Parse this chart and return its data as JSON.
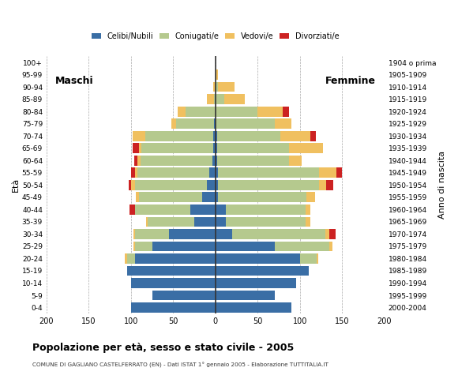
{
  "age_groups": [
    "0-4",
    "5-9",
    "10-14",
    "15-19",
    "20-24",
    "25-29",
    "30-34",
    "35-39",
    "40-44",
    "45-49",
    "50-54",
    "55-59",
    "60-64",
    "65-69",
    "70-74",
    "75-79",
    "80-84",
    "85-89",
    "90-94",
    "95-99",
    "100+"
  ],
  "birth_years": [
    "2000-2004",
    "1995-1999",
    "1990-1994",
    "1985-1989",
    "1980-1984",
    "1975-1979",
    "1970-1974",
    "1965-1969",
    "1960-1964",
    "1955-1959",
    "1950-1954",
    "1945-1949",
    "1940-1944",
    "1935-1939",
    "1930-1934",
    "1925-1929",
    "1920-1924",
    "1915-1919",
    "1910-1914",
    "1905-1909",
    "1904 o prima"
  ],
  "colors": {
    "celibi": "#3a6ea5",
    "coniugati": "#b5c98e",
    "vedovi": "#f0c060",
    "divorziati": "#cc2222"
  },
  "males": {
    "celibi": [
      100,
      75,
      100,
      105,
      95,
      75,
      55,
      25,
      30,
      16,
      10,
      7,
      4,
      3,
      3,
      2,
      0,
      0,
      0,
      0,
      0
    ],
    "coniugati": [
      0,
      0,
      0,
      0,
      10,
      20,
      40,
      55,
      65,
      75,
      85,
      85,
      85,
      85,
      80,
      45,
      35,
      2,
      0,
      0,
      0
    ],
    "vedovi": [
      0,
      0,
      0,
      0,
      2,
      2,
      2,
      2,
      0,
      3,
      5,
      3,
      3,
      3,
      15,
      5,
      10,
      8,
      3,
      0,
      0
    ],
    "divorziati": [
      0,
      0,
      0,
      0,
      0,
      0,
      0,
      0,
      7,
      0,
      3,
      5,
      4,
      7,
      0,
      0,
      0,
      0,
      0,
      0,
      0
    ]
  },
  "females": {
    "celibi": [
      90,
      70,
      95,
      110,
      100,
      70,
      20,
      12,
      12,
      3,
      3,
      3,
      2,
      2,
      2,
      0,
      0,
      0,
      0,
      0,
      0
    ],
    "coniugati": [
      0,
      0,
      0,
      0,
      20,
      65,
      110,
      95,
      95,
      105,
      120,
      120,
      85,
      85,
      75,
      70,
      50,
      10,
      3,
      0,
      0
    ],
    "vedovi": [
      0,
      0,
      0,
      0,
      2,
      3,
      5,
      5,
      5,
      10,
      8,
      20,
      15,
      40,
      35,
      20,
      30,
      25,
      20,
      3,
      0
    ],
    "divorziati": [
      0,
      0,
      0,
      0,
      0,
      0,
      7,
      0,
      0,
      0,
      8,
      7,
      0,
      0,
      7,
      0,
      7,
      0,
      0,
      0,
      0
    ]
  },
  "xlim": 200,
  "title": "Popolazione per età, sesso e stato civile - 2005",
  "subtitle": "COMUNE DI GAGLIANO CASTELFERRATO (EN) - Dati ISTAT 1° gennaio 2005 - Elaborazione TUTTITALIA.IT",
  "xlabel_left": "Maschi",
  "xlabel_right": "Femmine",
  "ylabel_left": "Età",
  "ylabel_right": "Anno di nascita",
  "bg_color": "#ffffff"
}
